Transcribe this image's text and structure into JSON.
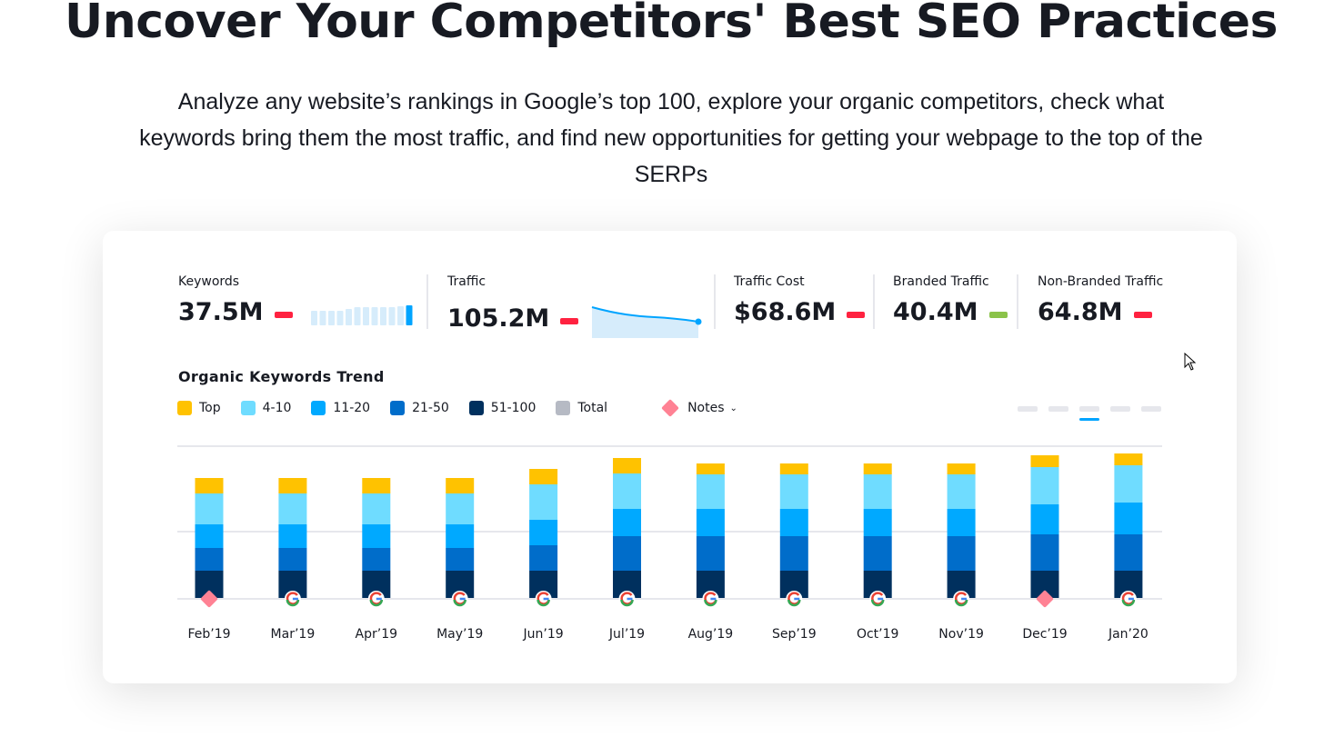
{
  "hero": {
    "title": "Uncover Your Competitors' Best SEO Practices",
    "subtitle": "Analyze any website’s rankings in Google’s top 100, explore your organic competitors, check what keywords bring them the most traffic, and find new opportunities for getting your webpage to the top of the SERPs"
  },
  "metrics": [
    {
      "label": "Keywords",
      "value": "37.5M",
      "trend_color": "#ff2240"
    },
    {
      "label": "Traffic",
      "value": "105.2M",
      "trend_color": "#ff2240"
    },
    {
      "label": "Traffic Cost",
      "value": "$68.6M",
      "trend_color": "#ff2240"
    },
    {
      "label": "Branded Traffic",
      "value": "40.4M",
      "trend_color": "#8bc34a"
    },
    {
      "label": "Non-Branded Traffic",
      "value": "64.8M",
      "trend_color": "#ff2240"
    }
  ],
  "chart_data": {
    "type": "bar",
    "stacked": true,
    "title": "Organic Keywords Trend",
    "categories": [
      "Feb’19",
      "Mar’19",
      "Apr’19",
      "May’19",
      "Jun’19",
      "Jul’19",
      "Aug’19",
      "Sep’19",
      "Oct’19",
      "Nov’19",
      "Dec’19",
      "Jan’20"
    ],
    "series": [
      {
        "name": "51-100",
        "color": "#00305e",
        "values": [
          30,
          30,
          30,
          30,
          30,
          30,
          30,
          30,
          30,
          30,
          30,
          30
        ]
      },
      {
        "name": "21-50",
        "color": "#006dca",
        "values": [
          25,
          25,
          25,
          25,
          28,
          38,
          38,
          38,
          38,
          38,
          40,
          40
        ]
      },
      {
        "name": "11-20",
        "color": "#00a9ff",
        "values": [
          26,
          26,
          26,
          26,
          28,
          30,
          30,
          30,
          30,
          30,
          33,
          35
        ]
      },
      {
        "name": "4-10",
        "color": "#6fdcff",
        "values": [
          34,
          34,
          34,
          34,
          39,
          39,
          38,
          38,
          38,
          38,
          41,
          41
        ]
      },
      {
        "name": "Top",
        "color": "#ffc200",
        "values": [
          17,
          17,
          17,
          17,
          17,
          17,
          12,
          12,
          12,
          12,
          13,
          13
        ]
      }
    ],
    "legend": [
      {
        "name": "Top",
        "color": "#ffc200"
      },
      {
        "name": "4-10",
        "color": "#6fdcff"
      },
      {
        "name": "11-20",
        "color": "#00a9ff"
      },
      {
        "name": "21-50",
        "color": "#006dca"
      },
      {
        "name": "51-100",
        "color": "#00305e"
      },
      {
        "name": "Total",
        "color": "#b6bac4"
      }
    ],
    "legend_placement": "top-left",
    "notes_label": "Notes",
    "markers": [
      "note",
      "google",
      "google",
      "google",
      "google",
      "google",
      "google",
      "google",
      "google",
      "google",
      "note",
      "google"
    ],
    "grid": true
  }
}
